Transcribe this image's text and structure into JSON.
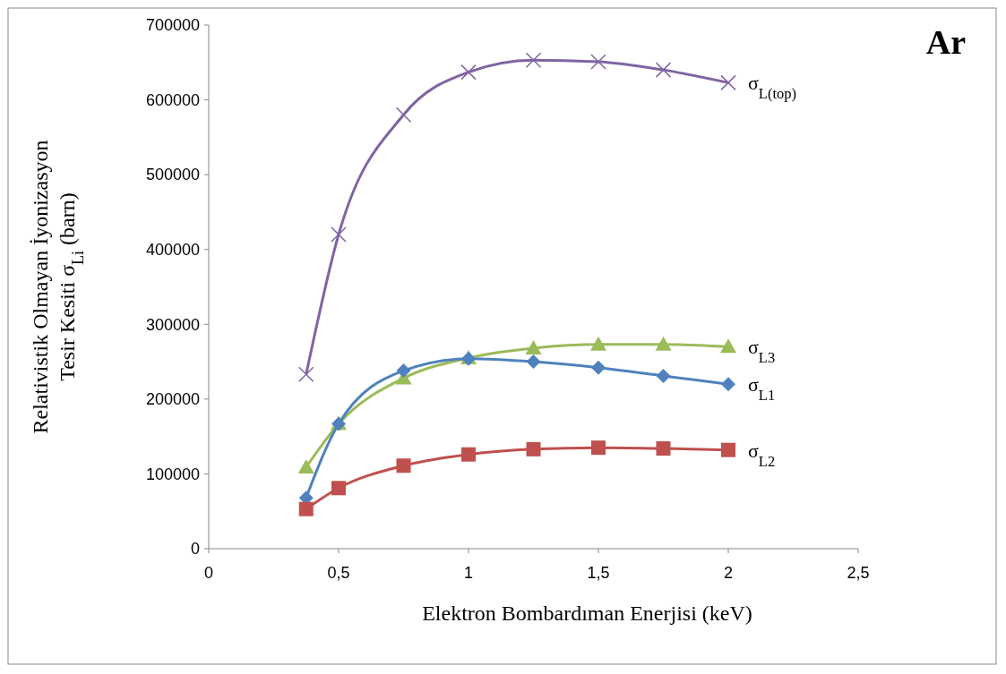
{
  "chart_data": {
    "type": "line",
    "title": "Ar",
    "xlabel": "Elektron Bombardıman Enerjisi (keV)",
    "ylabel": "Relativistik Olmayan İyonizasyon Tesir Kesiti σ$_{Li}$ (barn)",
    "xlim": [
      0,
      2.5
    ],
    "xticks": [
      0,
      {
        "value": 0.5,
        "label": "0,5"
      },
      1,
      {
        "value": 1.5,
        "label": "1,5"
      },
      2,
      {
        "value": 2.5,
        "label": "2,5"
      }
    ],
    "ylim": [
      0,
      700000
    ],
    "yticks": [
      0,
      100000,
      200000,
      300000,
      400000,
      500000,
      600000,
      700000
    ],
    "grid": false,
    "x": [
      0.375,
      0.5,
      0.75,
      1,
      1.25,
      1.5,
      1.75,
      2
    ],
    "series": [
      {
        "name": "σ$_{L(top)}$",
        "color": "#8064a2",
        "marker": "cross",
        "values": [
          233000,
          420000,
          580000,
          637000,
          653000,
          651000,
          640000,
          623000
        ]
      },
      {
        "name": "σ$_{L3}$",
        "color": "#9bbb59",
        "marker": "triangle",
        "values": [
          109000,
          167000,
          228000,
          255000,
          268000,
          273000,
          273000,
          270000
        ]
      },
      {
        "name": "σ$_{L1}$",
        "color": "#4f81bd",
        "marker": "diamond",
        "values": [
          68000,
          167000,
          238000,
          254000,
          250000,
          242000,
          231000,
          220000
        ]
      },
      {
        "name": "σ$_{L2}$",
        "color": "#c0504d",
        "marker": "square",
        "values": [
          53000,
          81000,
          111000,
          126000,
          133000,
          135000,
          134000,
          132000
        ]
      }
    ]
  }
}
